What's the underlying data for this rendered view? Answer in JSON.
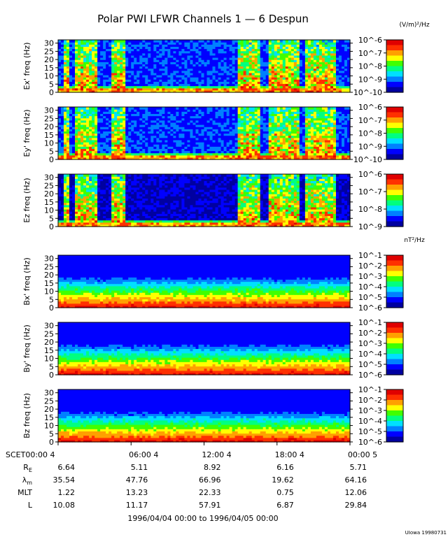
{
  "chart_data": {
    "type": "heatmap",
    "title": "Polar PWI LFWR Channels 1 — 6 Despun",
    "units_electric": "(V/m)²/Hz",
    "units_magnetic": "nT²/Hz",
    "time_range_label": "1996/04/04 00:00 to 1996/04/05 00:00",
    "credit": "UIowa 19980731",
    "x_tick_labels": [
      "SCET00:00  4",
      "06:00  4",
      "12:00  4",
      "18:00  4",
      "00:00  5"
    ],
    "x_range_hours": [
      0,
      24
    ],
    "ylim": [
      0,
      32
    ],
    "y_tick_labels": [
      "0",
      "5",
      "10",
      "15",
      "20",
      "25",
      "30"
    ],
    "panels": [
      {
        "ylabel": "Ex' freq (Hz)",
        "colorbar_labels": [
          "10^-6",
          "10^-7",
          "10^-8",
          "10^-9",
          "10^-10"
        ],
        "colorbar_exponents": [
          -6,
          -7,
          -8,
          -9,
          -10
        ]
      },
      {
        "ylabel": "Ey' freq (Hz)",
        "colorbar_labels": [
          "10^-6",
          "10^-7",
          "10^-8",
          "10^-9",
          "10^-10"
        ],
        "colorbar_exponents": [
          -6,
          -7,
          -8,
          -9,
          -10
        ]
      },
      {
        "ylabel": "Ez freq (Hz)",
        "colorbar_labels": [
          "10^-6",
          "10^-7",
          "10^-8",
          "10^-9"
        ],
        "colorbar_exponents": [
          -6,
          -7,
          -8,
          -9
        ]
      },
      {
        "ylabel": "Bx' freq (Hz)",
        "colorbar_labels": [
          "10^-1",
          "10^-2",
          "10^-3",
          "10^-4",
          "10^-5",
          "10^-6"
        ],
        "colorbar_exponents": [
          -1,
          -2,
          -3,
          -4,
          -5,
          -6
        ]
      },
      {
        "ylabel": "By' freq (Hz)",
        "colorbar_labels": [
          "10^-1",
          "10^-2",
          "10^-3",
          "10^-4",
          "10^-5",
          "10^-6"
        ],
        "colorbar_exponents": [
          -1,
          -2,
          -3,
          -4,
          -5,
          -6
        ]
      },
      {
        "ylabel": "Bz freq (Hz)",
        "colorbar_labels": [
          "10^-1",
          "10^-2",
          "10^-3",
          "10^-4",
          "10^-5",
          "10^-6"
        ],
        "colorbar_exponents": [
          -1,
          -2,
          -3,
          -4,
          -5,
          -6
        ]
      }
    ],
    "ephemeris": [
      {
        "label": "R",
        "sub": "E",
        "values": [
          "6.64",
          "5.11",
          "8.92",
          "6.16",
          "5.71"
        ]
      },
      {
        "label": "λ",
        "sub": "m",
        "values": [
          "35.54",
          "47.76",
          "66.96",
          "19.62",
          "64.16"
        ]
      },
      {
        "label": "MLT",
        "sub": "",
        "values": [
          "1.22",
          "13.23",
          "22.33",
          "0.75",
          "12.06"
        ]
      },
      {
        "label": "L",
        "sub": "",
        "values": [
          "10.08",
          "11.17",
          "57.91",
          "6.87",
          "29.84"
        ]
      }
    ],
    "electric_bursts_hours": [
      [
        0.4,
        1.0
      ],
      [
        1.4,
        3.2
      ],
      [
        4.3,
        5.6
      ],
      [
        14.8,
        16.5
      ],
      [
        17.3,
        19.8
      ],
      [
        20.2,
        22.8
      ]
    ],
    "colormap": [
      "#0000a0",
      "#0000ff",
      "#0080ff",
      "#00e0ff",
      "#00ff80",
      "#40ff00",
      "#ffff00",
      "#ffa000",
      "#ff3000",
      "#e00000"
    ]
  }
}
